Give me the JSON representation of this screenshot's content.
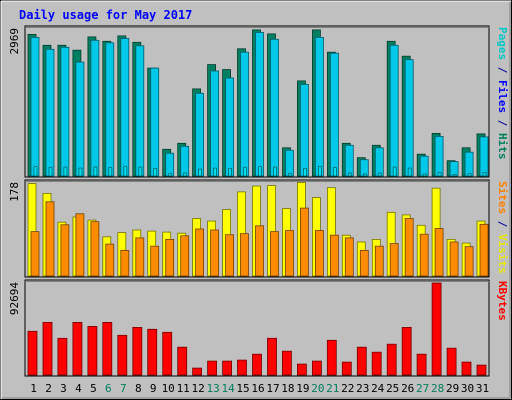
{
  "chart_data": {
    "type": "bar",
    "title": "Daily usage for May 2017",
    "categories": [
      "1",
      "2",
      "3",
      "4",
      "5",
      "6",
      "7",
      "8",
      "9",
      "10",
      "11",
      "12",
      "13",
      "14",
      "15",
      "16",
      "17",
      "18",
      "19",
      "20",
      "21",
      "22",
      "23",
      "24",
      "25",
      "26",
      "27",
      "28",
      "29",
      "30",
      "31"
    ],
    "weekend_days": [
      "6",
      "7",
      "13",
      "14",
      "20",
      "21",
      "27",
      "28"
    ],
    "panels": [
      {
        "id": "hits",
        "max_label": "2969",
        "ylim": [
          0,
          2969
        ],
        "axis_label": [
          {
            "text": "Pages",
            "color": "#00c8c8"
          },
          {
            "text": " / ",
            "color": "#0000a0"
          },
          {
            "text": "Files",
            "color": "#0000ff"
          },
          {
            "text": " / ",
            "color": "#0000a0"
          },
          {
            "text": "Hits",
            "color": "#00805c"
          }
        ],
        "series": [
          {
            "name": "Hits",
            "color": "#008060",
            "values": [
              2860,
              2640,
              2640,
              2540,
              2810,
              2720,
              2830,
              2700,
              2180,
              540,
              660,
              1760,
              2250,
              2150,
              2570,
              2950,
              2870,
              570,
              1920,
              2950,
              2500,
              660,
              370,
              620,
              2720,
              2420,
              440,
              860,
              310,
              570,
              850
            ]
          },
          {
            "name": "Files",
            "color": "#00c8e8",
            "values": [
              2800,
              2560,
              2600,
              2300,
              2740,
              2690,
              2780,
              2630,
              2180,
              460,
              600,
              1670,
              2120,
              1980,
              2500,
              2900,
              2760,
              520,
              1850,
              2800,
              2480,
              620,
              330,
              570,
              2640,
              2350,
              400,
              800,
              290,
              480,
              790
            ]
          },
          {
            "name": "Pages",
            "color": "#00e0f0",
            "values": [
              190,
              170,
              180,
              160,
              180,
              170,
              190,
              180,
              150,
              50,
              60,
              140,
              160,
              150,
              170,
              190,
              180,
              50,
              150,
              190,
              170,
              60,
              40,
              60,
              180,
              160,
              40,
              70,
              30,
              50,
              70
            ]
          }
        ]
      },
      {
        "id": "visits",
        "max_label": "178",
        "ylim": [
          0,
          178
        ],
        "axis_label": [
          {
            "text": "Sites",
            "color": "#ff8000"
          },
          {
            "text": " / ",
            "color": "#0000a0"
          },
          {
            "text": "Visits",
            "color": "#e8e800"
          }
        ],
        "series": [
          {
            "name": "Visits",
            "color": "#ffff00",
            "values": [
              177,
              158,
              103,
              113,
              107,
              75,
              83,
              88,
              86,
              84,
              82,
              110,
              105,
              127,
              161,
              172,
              173,
              129,
              179,
              150,
              169,
              78,
              65,
              70,
              122,
              117,
              97,
              168,
              70,
              63,
              105
            ]
          },
          {
            "name": "Sites",
            "color": "#ff8c00",
            "values": [
              85,
              142,
              98,
              119,
              104,
              61,
              49,
              73,
              57,
              70,
              77,
              90,
              88,
              79,
              81,
              96,
              85,
              87,
              130,
              87,
              78,
              73,
              49,
              57,
              62,
              110,
              80,
              91,
              65,
              56,
              99
            ]
          }
        ]
      },
      {
        "id": "kbytes",
        "max_label": "92694",
        "ylim": [
          0,
          92694
        ],
        "axis_label": [
          {
            "text": "KBytes",
            "color": "#ff0000"
          }
        ],
        "series": [
          {
            "name": "KBytes",
            "color": "#ff0000",
            "values": [
              44000,
              53000,
              37000,
              53000,
              49000,
              53000,
              40000,
              48000,
              46000,
              43000,
              28000,
              7000,
              14000,
              14000,
              15000,
              21000,
              37000,
              24000,
              11000,
              14000,
              35000,
              13000,
              28000,
              23000,
              31000,
              48000,
              21000,
              92694,
              27000,
              13000,
              10000
            ]
          }
        ]
      }
    ]
  }
}
